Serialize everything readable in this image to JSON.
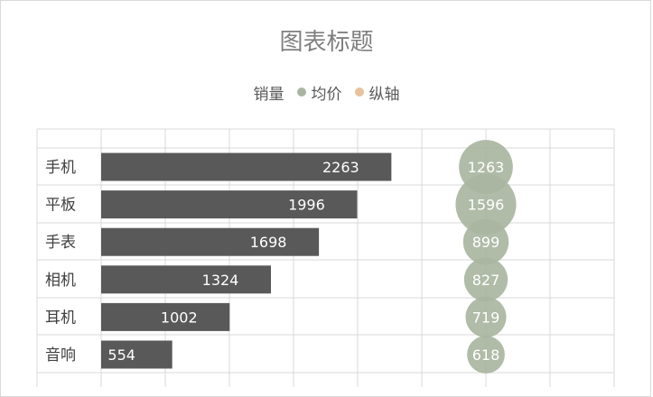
{
  "chart": {
    "title": "图表标题",
    "legend": [
      {
        "label": "销量",
        "color": "",
        "marker": false
      },
      {
        "label": "均价",
        "color": "#a9b5a1",
        "marker": true
      },
      {
        "label": "纵轴",
        "color": "#e8c29c",
        "marker": true
      }
    ]
  },
  "chart_data": {
    "type": "bar",
    "title": "图表标题",
    "categories": [
      "手机",
      "平板",
      "手表",
      "相机",
      "耳机",
      "音响"
    ],
    "series": [
      {
        "name": "销量",
        "type": "bar",
        "orientation": "horizontal",
        "color": "#595959",
        "values": [
          2263,
          1996,
          1698,
          1324,
          1002,
          554
        ]
      },
      {
        "name": "均价",
        "type": "bubble",
        "color": "#a9b5a1",
        "values": [
          1263,
          1596,
          899,
          827,
          719,
          618
        ]
      }
    ],
    "xlim": [
      -500,
      4000
    ],
    "grid": true,
    "legend_position": "top",
    "label_color": "#ffffff"
  }
}
